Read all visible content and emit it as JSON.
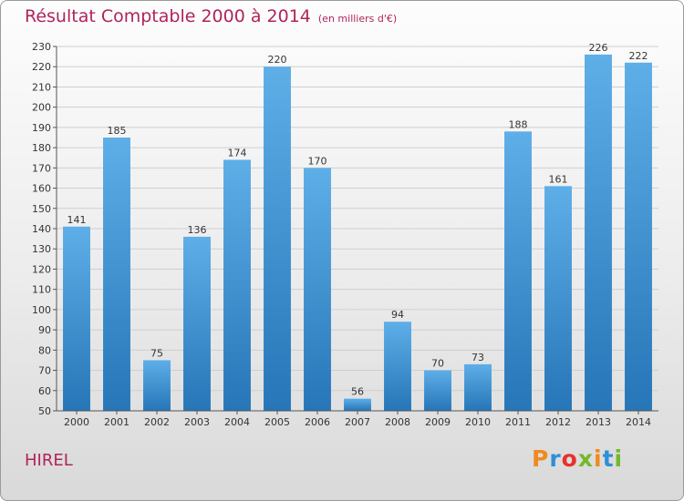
{
  "header": {
    "title": "Résultat Comptable 2000 à 2014",
    "subtitle": "(en milliers d'€)"
  },
  "footer": {
    "place": "HIREL",
    "logo": [
      "P",
      "r",
      "o",
      "x",
      "i",
      "t",
      "i"
    ]
  },
  "colors": {
    "title": "#b0245c",
    "bar_top": "#5eaee8",
    "bar_bottom": "#2676b8",
    "grid": "#cfcfcf",
    "logo": [
      "#f08a1e",
      "#2f8fd6",
      "#e8312b",
      "#74b82b",
      "#f08a1e",
      "#2f8fd6",
      "#74b82b"
    ]
  },
  "chart_data": {
    "type": "bar",
    "title": "Résultat Comptable 2000 à 2014",
    "subtitle": "(en milliers d'€)",
    "categories": [
      "2000",
      "2001",
      "2002",
      "2003",
      "2004",
      "2005",
      "2006",
      "2007",
      "2008",
      "2009",
      "2010",
      "2011",
      "2012",
      "2013",
      "2014"
    ],
    "values": [
      141,
      185,
      75,
      136,
      174,
      220,
      170,
      56,
      94,
      70,
      73,
      188,
      161,
      226,
      222
    ],
    "ylim": [
      50,
      230
    ],
    "yticks": [
      50,
      60,
      70,
      80,
      90,
      100,
      110,
      120,
      130,
      140,
      150,
      160,
      170,
      180,
      190,
      200,
      210,
      220,
      230
    ],
    "grid": true,
    "data_labels": true
  }
}
